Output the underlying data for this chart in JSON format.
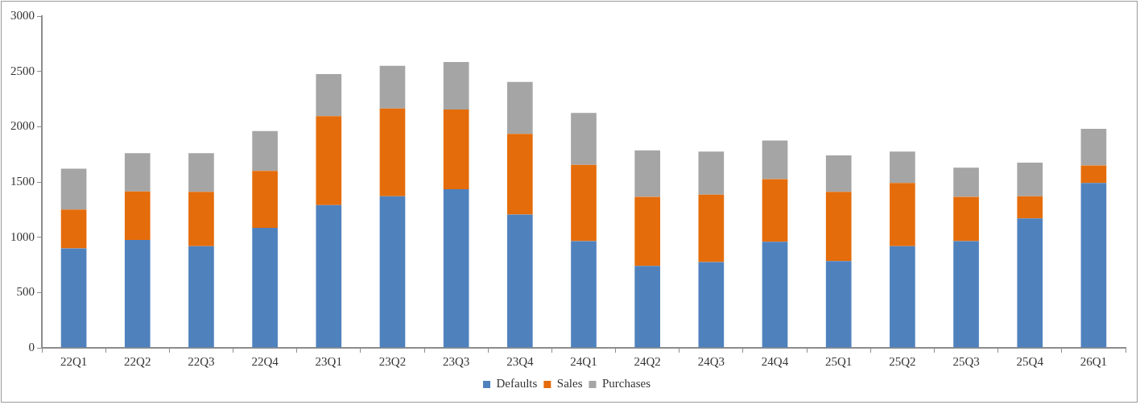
{
  "chart_data": {
    "type": "bar",
    "stacked": true,
    "categories": [
      "22Q1",
      "22Q2",
      "22Q3",
      "22Q4",
      "23Q1",
      "23Q2",
      "23Q3",
      "23Q4",
      "24Q1",
      "24Q2",
      "24Q3",
      "24Q4",
      "25Q1",
      "25Q2",
      "25Q3",
      "25Q4",
      "26Q1"
    ],
    "series": [
      {
        "name": "Defaults",
        "color": "#4f81bd",
        "values": [
          900,
          975,
          920,
          1085,
          1290,
          1370,
          1435,
          1205,
          965,
          740,
          775,
          960,
          785,
          920,
          965,
          1170,
          1490
        ]
      },
      {
        "name": "Sales",
        "color": "#e46c0a",
        "values": [
          350,
          440,
          490,
          515,
          805,
          795,
          720,
          730,
          690,
          625,
          610,
          565,
          625,
          570,
          400,
          200,
          160
        ]
      },
      {
        "name": "Purchases",
        "color": "#a5a5a5",
        "values": [
          370,
          345,
          350,
          360,
          380,
          385,
          430,
          470,
          470,
          420,
          390,
          350,
          330,
          285,
          265,
          305,
          330
        ]
      }
    ],
    "ylim": [
      0,
      3000
    ],
    "yticks": [
      0,
      500,
      1000,
      1500,
      2000,
      2500,
      3000
    ],
    "grid": false,
    "legend": "bottom"
  }
}
